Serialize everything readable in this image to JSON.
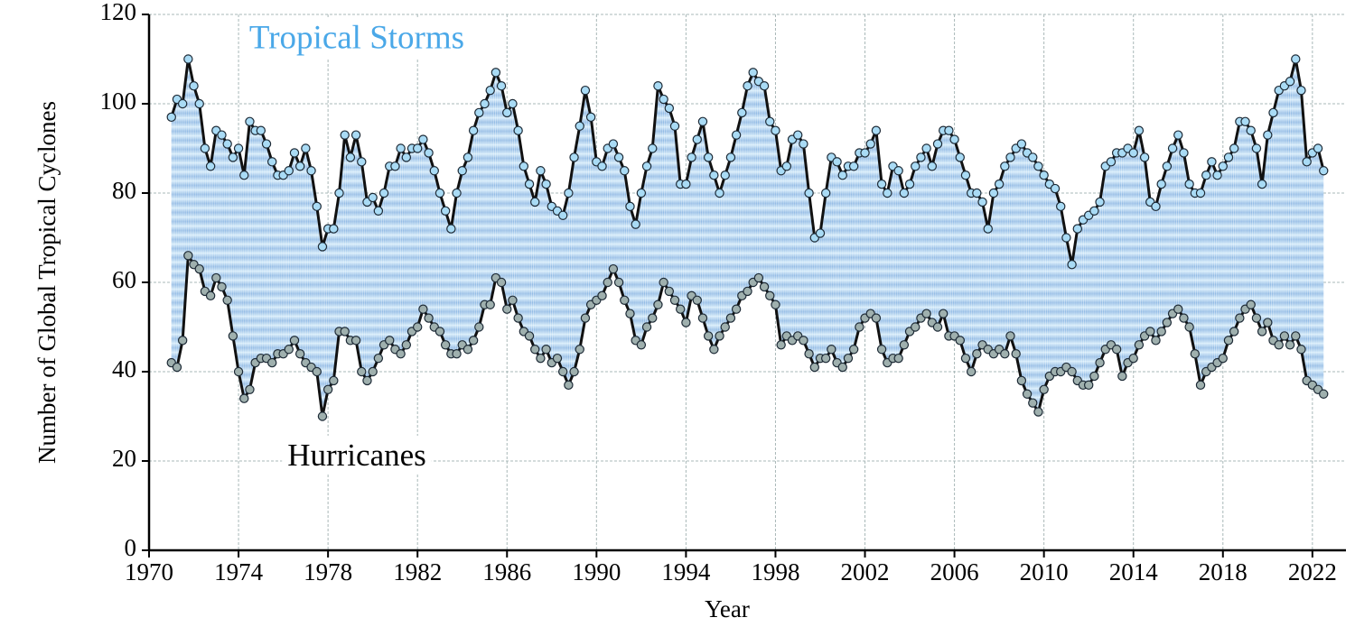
{
  "chart_data": {
    "type": "line",
    "xlabel": "Year",
    "ylabel": "Number of Global Tropical Cyclones",
    "x": [
      1971,
      1971.25,
      1971.5,
      1971.75,
      1972,
      1972.25,
      1972.5,
      1972.75,
      1973,
      1973.25,
      1973.5,
      1973.75,
      1974,
      1974.25,
      1974.5,
      1974.75,
      1975,
      1975.25,
      1975.5,
      1975.75,
      1976,
      1976.25,
      1976.5,
      1976.75,
      1977,
      1977.25,
      1977.5,
      1977.75,
      1978,
      1978.25,
      1978.5,
      1978.75,
      1979,
      1979.25,
      1979.5,
      1979.75,
      1980,
      1980.25,
      1980.5,
      1980.75,
      1981,
      1981.25,
      1981.5,
      1981.75,
      1982,
      1982.25,
      1982.5,
      1982.75,
      1983,
      1983.25,
      1983.5,
      1983.75,
      1984,
      1984.25,
      1984.5,
      1984.75,
      1985,
      1985.25,
      1985.5,
      1985.75,
      1986,
      1986.25,
      1986.5,
      1986.75,
      1987,
      1987.25,
      1987.5,
      1987.75,
      1988,
      1988.25,
      1988.5,
      1988.75,
      1989,
      1989.25,
      1989.5,
      1989.75,
      1990,
      1990.25,
      1990.5,
      1990.75,
      1991,
      1991.25,
      1991.5,
      1991.75,
      1992,
      1992.25,
      1992.5,
      1992.75,
      1993,
      1993.25,
      1993.5,
      1993.75,
      1994,
      1994.25,
      1994.5,
      1994.75,
      1995,
      1995.25,
      1995.5,
      1995.75,
      1996,
      1996.25,
      1996.5,
      1996.75,
      1997,
      1997.25,
      1997.5,
      1997.75,
      1998,
      1998.25,
      1998.5,
      1998.75,
      1999,
      1999.25,
      1999.5,
      1999.75,
      2000,
      2000.25,
      2000.5,
      2000.75,
      2001,
      2001.25,
      2001.5,
      2001.75,
      2002,
      2002.25,
      2002.5,
      2002.75,
      2003,
      2003.25,
      2003.5,
      2003.75,
      2004,
      2004.25,
      2004.5,
      2004.75,
      2005,
      2005.25,
      2005.5,
      2005.75,
      2006,
      2006.25,
      2006.5,
      2006.75,
      2007,
      2007.25,
      2007.5,
      2007.75,
      2008,
      2008.25,
      2008.5,
      2008.75,
      2009,
      2009.25,
      2009.5,
      2009.75,
      2010,
      2010.25,
      2010.5,
      2010.75,
      2011,
      2011.25,
      2011.5,
      2011.75,
      2012,
      2012.25,
      2012.5,
      2012.75,
      2013,
      2013.25,
      2013.5,
      2013.75,
      2014,
      2014.25,
      2014.5,
      2014.75,
      2015,
      2015.25,
      2015.5,
      2015.75,
      2016,
      2016.25,
      2016.5,
      2016.75,
      2017,
      2017.25,
      2017.5,
      2017.75,
      2018,
      2018.25,
      2018.5,
      2018.75,
      2019,
      2019.25,
      2019.5,
      2019.75,
      2020,
      2020.25,
      2020.5,
      2020.75,
      2021,
      2021.25,
      2021.5,
      2021.75,
      2022,
      2022.25,
      2022.5
    ],
    "series": [
      {
        "name": "Tropical Storms",
        "color": "#a9dbf5",
        "values": [
          97,
          101,
          100,
          110,
          104,
          100,
          90,
          86,
          94,
          93,
          91,
          88,
          90,
          84,
          96,
          94,
          94,
          91,
          87,
          84,
          84,
          85,
          89,
          86,
          90,
          85,
          77,
          68,
          72,
          72,
          80,
          93,
          88,
          93,
          87,
          78,
          79,
          76,
          80,
          86,
          86,
          90,
          88,
          90,
          90,
          92,
          89,
          85,
          80,
          76,
          72,
          80,
          85,
          88,
          94,
          98,
          100,
          103,
          107,
          104,
          98,
          100,
          94,
          86,
          82,
          78,
          85,
          82,
          77,
          76,
          75,
          80,
          88,
          95,
          103,
          97,
          87,
          86,
          90,
          91,
          88,
          85,
          77,
          73,
          80,
          86,
          90,
          104,
          101,
          99,
          95,
          82,
          82,
          88,
          92,
          96,
          88,
          84,
          80,
          84,
          88,
          93,
          98,
          104,
          107,
          105,
          104,
          96,
          94,
          85,
          86,
          92,
          93,
          91,
          80,
          70,
          71,
          80,
          88,
          87,
          84,
          86,
          86,
          89,
          89,
          91,
          94,
          82,
          80,
          86,
          85,
          80,
          82,
          86,
          88,
          90,
          86,
          91,
          94,
          94,
          92,
          88,
          84,
          80,
          80,
          78,
          72,
          80,
          82,
          86,
          88,
          90,
          91,
          89,
          88,
          86,
          84,
          82,
          81,
          77,
          70,
          64,
          72,
          74,
          75,
          76,
          78,
          86,
          87,
          89,
          89,
          90,
          89,
          94,
          88,
          78,
          77,
          82,
          86,
          90,
          93,
          89,
          82,
          80,
          80,
          84,
          87,
          84,
          86,
          88,
          90,
          96,
          96,
          94,
          90,
          82,
          93,
          98,
          103,
          104,
          105,
          110,
          103,
          87,
          89,
          90,
          85
        ]
      },
      {
        "name": "Hurricanes",
        "color": "#9fb0ae",
        "values": [
          42,
          41,
          47,
          66,
          64,
          63,
          58,
          57,
          61,
          59,
          56,
          48,
          40,
          34,
          36,
          42,
          43,
          43,
          42,
          44,
          44,
          45,
          47,
          44,
          42,
          41,
          40,
          30,
          36,
          38,
          49,
          49,
          47,
          47,
          40,
          38,
          40,
          43,
          46,
          47,
          45,
          44,
          46,
          49,
          50,
          54,
          52,
          50,
          49,
          46,
          44,
          44,
          46,
          45,
          47,
          50,
          55,
          55,
          61,
          60,
          54,
          56,
          52,
          49,
          48,
          45,
          43,
          45,
          42,
          43,
          40,
          37,
          40,
          45,
          52,
          55,
          56,
          57,
          60,
          63,
          60,
          56,
          53,
          47,
          46,
          50,
          52,
          55,
          60,
          58,
          56,
          54,
          51,
          57,
          56,
          52,
          48,
          45,
          48,
          50,
          52,
          54,
          57,
          58,
          60,
          61,
          59,
          57,
          55,
          46,
          48,
          47,
          48,
          47,
          44,
          41,
          43,
          43,
          45,
          42,
          41,
          43,
          45,
          50,
          52,
          53,
          52,
          45,
          42,
          43,
          43,
          46,
          49,
          50,
          52,
          53,
          51,
          50,
          53,
          48,
          48,
          47,
          43,
          40,
          44,
          46,
          45,
          44,
          45,
          44,
          48,
          44,
          38,
          35,
          33,
          31,
          36,
          39,
          40,
          40,
          41,
          40,
          38,
          37,
          37,
          39,
          42,
          45,
          46,
          45,
          39,
          42,
          43,
          46,
          48,
          49,
          47,
          49,
          51,
          53,
          54,
          52,
          50,
          44,
          37,
          40,
          41,
          42,
          43,
          47,
          49,
          52,
          54,
          55,
          52,
          49,
          51,
          47,
          46,
          48,
          46,
          48,
          45,
          38,
          37,
          36,
          35
        ]
      }
    ],
    "xlim": [
      1970,
      2023.5
    ],
    "xticks": [
      1970,
      1974,
      1978,
      1982,
      1986,
      1990,
      1994,
      1998,
      2002,
      2006,
      2010,
      2014,
      2018,
      2022
    ],
    "ylim": [
      0,
      120
    ],
    "yticks": [
      0,
      20,
      40,
      60,
      80,
      100,
      120
    ],
    "grid": true
  }
}
